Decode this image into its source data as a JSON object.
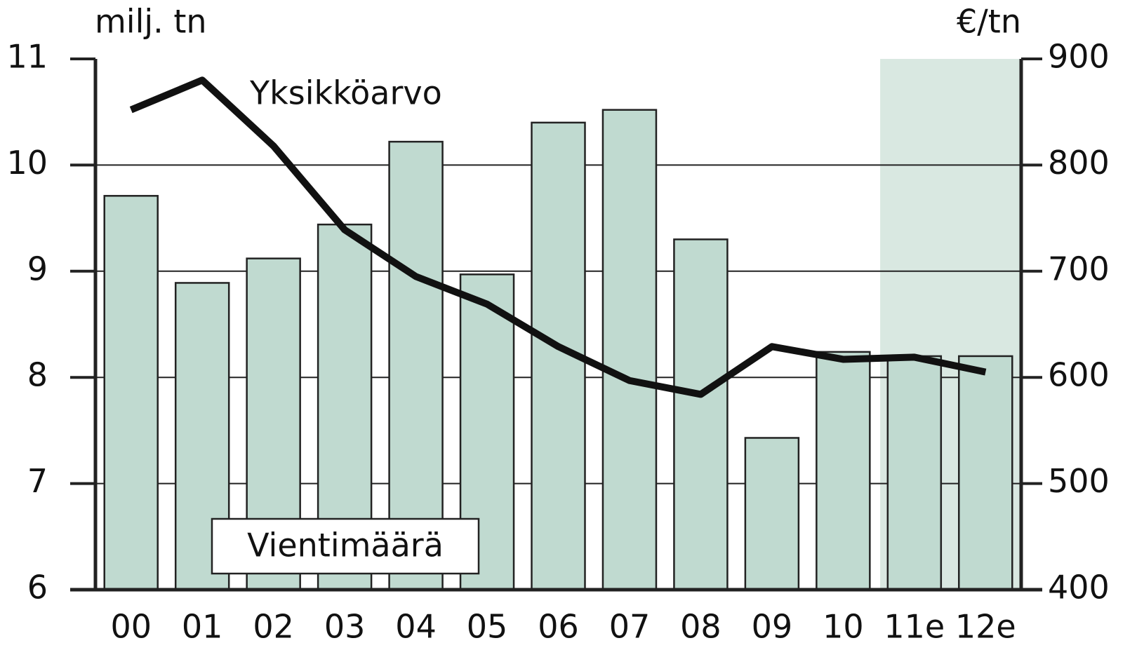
{
  "chart_data": {
    "type": "bar-line",
    "y_label": "milj. tn",
    "y2_label": "€/tn",
    "categories": [
      "00",
      "01",
      "02",
      "03",
      "04",
      "05",
      "06",
      "07",
      "08",
      "09",
      "10",
      "11e",
      "12e"
    ],
    "series": [
      {
        "name": "Vientimäärä",
        "type": "bar",
        "color": "#c0dad0",
        "axis": "y",
        "values": [
          9.71,
          8.89,
          9.12,
          9.44,
          10.22,
          8.97,
          10.4,
          10.52,
          9.3,
          7.43,
          8.24,
          8.2,
          8.2
        ]
      },
      {
        "name": "Yksikköarvo",
        "type": "line",
        "color": "#111111",
        "axis": "y2",
        "values": [
          852,
          880,
          818,
          739,
          695,
          669,
          629,
          597,
          584,
          629,
          617,
          619,
          605
        ]
      }
    ],
    "ylim": [
      6,
      11
    ],
    "yticks": [
      6,
      7,
      8,
      9,
      10,
      11
    ],
    "y2lim": [
      400,
      900
    ],
    "y2ticks": [
      400,
      500,
      600,
      700,
      800,
      900
    ],
    "grid": true,
    "highlight": {
      "from": 11,
      "to": 12,
      "color": "#d9e8e1"
    }
  }
}
